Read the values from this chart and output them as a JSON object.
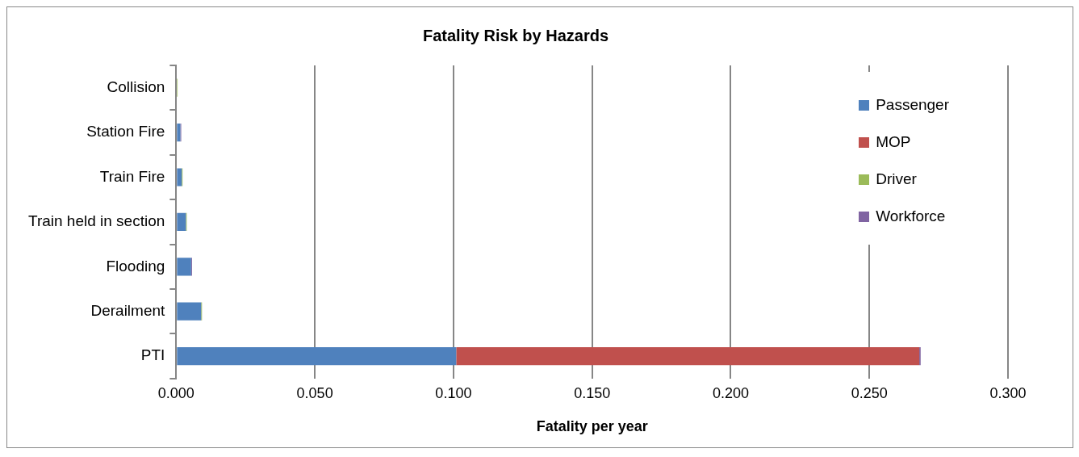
{
  "chart_data": {
    "type": "bar",
    "orientation": "horizontal",
    "stacked": true,
    "title": "Fatality Risk by Hazards",
    "xlabel": "Fatality per year",
    "categories": [
      "Collision",
      "Station Fire",
      "Train Fire",
      "Train held in section",
      "Flooding",
      "Derailment",
      "PTI"
    ],
    "series": [
      {
        "name": "Passenger",
        "color": "#4f81bd",
        "values": [
          0,
          0.0015,
          0.002,
          0.0035,
          0.0054,
          0.009,
          0.101
        ]
      },
      {
        "name": "MOP",
        "color": "#c0504d",
        "values": [
          0,
          0,
          0,
          0,
          0,
          0,
          0.167
        ]
      },
      {
        "name": "Driver",
        "color": "#9bbb59",
        "values": [
          0.0005,
          0,
          0.0003,
          0.0003,
          0,
          0.0003,
          0
        ]
      },
      {
        "name": "Workforce",
        "color": "#8064a2",
        "values": [
          0,
          0.0003,
          0,
          0,
          0.0003,
          0,
          0.0005
        ]
      }
    ],
    "xlim": [
      0,
      0.3
    ],
    "xticks": [
      {
        "value": 0,
        "label": "0.000"
      },
      {
        "value": 0.05,
        "label": "0.050"
      },
      {
        "value": 0.1,
        "label": "0.100"
      },
      {
        "value": 0.15,
        "label": "0.150"
      },
      {
        "value": 0.2,
        "label": "0.200"
      },
      {
        "value": 0.25,
        "label": "0.250"
      },
      {
        "value": 0.3,
        "label": "0.300"
      }
    ],
    "grid": "x",
    "legend": "top right"
  }
}
